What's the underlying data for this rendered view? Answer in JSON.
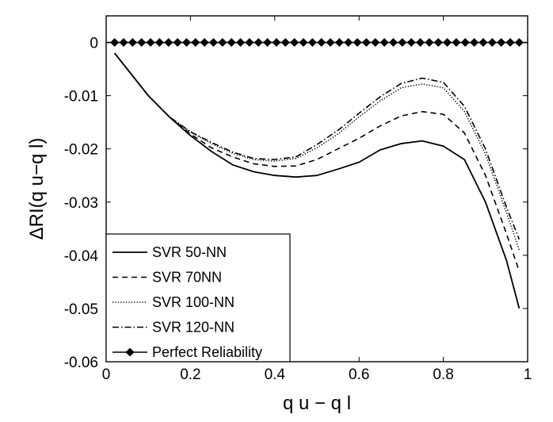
{
  "chart_data": {
    "type": "line",
    "xlabel": "q u − q l",
    "ylabel": "ΔRI(q u−q l)",
    "xlim": [
      0,
      1
    ],
    "ylim": [
      -0.06,
      0.005
    ],
    "x_ticks": [
      0,
      0.2,
      0.4,
      0.6,
      0.8,
      1
    ],
    "x_tick_labels": [
      "0",
      "0.2",
      "0.4",
      "0.6",
      "0.8",
      "1"
    ],
    "y_ticks": [
      0,
      -0.01,
      -0.02,
      -0.03,
      -0.04,
      -0.05,
      -0.06
    ],
    "y_tick_labels": [
      "0",
      "-0.01",
      "-0.02",
      "-0.03",
      "-0.04",
      "-0.05",
      "-0.06"
    ],
    "grid": false,
    "legend_position": "bottom-left",
    "x": [
      0.02,
      0.05,
      0.1,
      0.15,
      0.2,
      0.25,
      0.3,
      0.35,
      0.4,
      0.45,
      0.5,
      0.55,
      0.6,
      0.65,
      0.7,
      0.75,
      0.8,
      0.85,
      0.9,
      0.95,
      0.98
    ],
    "series": [
      {
        "name": "SVR 50-NN",
        "style": "solid",
        "values": [
          -0.002,
          -0.005,
          -0.01,
          -0.014,
          -0.0175,
          -0.0205,
          -0.023,
          -0.0243,
          -0.025,
          -0.0253,
          -0.025,
          -0.0238,
          -0.0225,
          -0.0202,
          -0.019,
          -0.0185,
          -0.0195,
          -0.022,
          -0.03,
          -0.041,
          -0.05
        ]
      },
      {
        "name": "SVR 70NN",
        "style": "dashed",
        "values": [
          -0.002,
          -0.005,
          -0.01,
          -0.014,
          -0.0172,
          -0.0198,
          -0.0215,
          -0.0228,
          -0.0233,
          -0.0232,
          -0.022,
          -0.02,
          -0.018,
          -0.0157,
          -0.0138,
          -0.013,
          -0.0135,
          -0.017,
          -0.025,
          -0.036,
          -0.043
        ]
      },
      {
        "name": "SVR 100-NN",
        "style": "dotted",
        "values": [
          -0.002,
          -0.005,
          -0.01,
          -0.014,
          -0.0168,
          -0.019,
          -0.0208,
          -0.022,
          -0.0223,
          -0.0218,
          -0.0198,
          -0.0172,
          -0.014,
          -0.011,
          -0.0085,
          -0.0078,
          -0.0085,
          -0.013,
          -0.021,
          -0.032,
          -0.039
        ]
      },
      {
        "name": "SVR 120-NN",
        "style": "dashdot",
        "values": [
          -0.002,
          -0.005,
          -0.01,
          -0.014,
          -0.0168,
          -0.0188,
          -0.0206,
          -0.0218,
          -0.022,
          -0.0215,
          -0.0192,
          -0.0165,
          -0.0133,
          -0.0102,
          -0.0077,
          -0.0067,
          -0.0075,
          -0.012,
          -0.02,
          -0.031,
          -0.037
        ]
      },
      {
        "name": "Perfect Reliability",
        "style": "diamond",
        "constant": 0
      }
    ],
    "marker_count": 46
  }
}
